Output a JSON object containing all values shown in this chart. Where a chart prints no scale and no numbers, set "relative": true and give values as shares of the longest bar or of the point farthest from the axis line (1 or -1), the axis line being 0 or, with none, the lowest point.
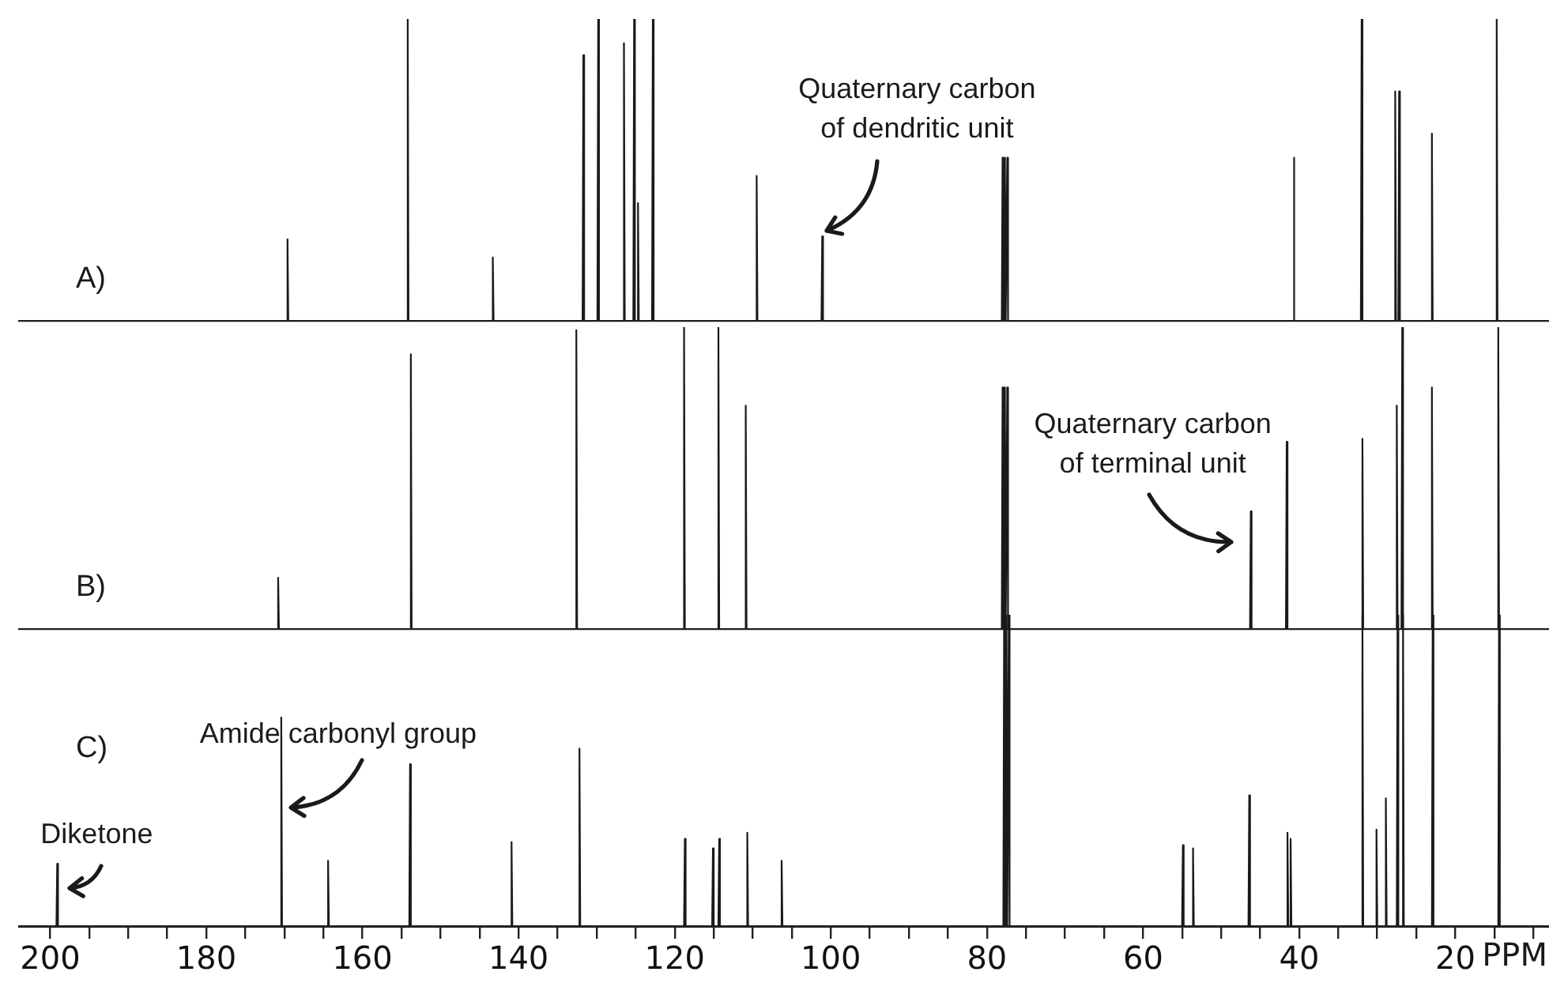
{
  "chart_data": [
    {
      "type": "line",
      "relative": true,
      "xlim": [
        204,
        8
      ],
      "tick_labels": false,
      "grid": false,
      "legend": false,
      "marker": "none",
      "line_style": "solid",
      "series": [
        {
          "name": "A)",
          "color": "#1a1a1a",
          "x": [
            204,
            169.7,
            169.6,
            169.5,
            154.3,
            154.2,
            154.1,
            143.4,
            143.3,
            143.2,
            131.8,
            131.7,
            131.6,
            129.9,
            129.8,
            129.7,
            126.6,
            126.5,
            126.4,
            125.3,
            125.2,
            125.1,
            124.8,
            124.7,
            124.6,
            122.9,
            122.8,
            122.7,
            109.6,
            109.5,
            109.4,
            101.2,
            101.1,
            101.0,
            78.1,
            78.0,
            77.9,
            77.8,
            77.7,
            77.6,
            77.5,
            77.4,
            77.3,
            40.8,
            40.7,
            40.6,
            32.1,
            32.0,
            31.9,
            27.8,
            27.7,
            27.6,
            27.3,
            27.2,
            27.1,
            23.1,
            23.0,
            22.9,
            14.8,
            14.7,
            14.6,
            8
          ],
          "values": [
            0,
            0,
            0.27,
            0,
            0,
            1,
            0,
            0,
            0.21,
            0,
            0,
            0.88,
            0,
            0,
            1,
            0,
            0,
            0.92,
            0,
            0,
            1,
            0,
            0,
            0.39,
            0,
            0,
            1,
            0,
            0,
            0.48,
            0,
            0,
            0.28,
            0,
            0,
            0.54,
            0,
            0,
            0.54,
            0,
            0,
            0.54,
            0,
            0,
            0.54,
            0,
            0,
            1,
            0,
            0,
            0.76,
            0,
            0,
            0.76,
            0,
            0,
            0.62,
            0,
            0,
            1,
            0,
            0
          ]
        }
      ],
      "annotations": [
        {
          "text": "Quaternary carbon\nof dendritic unit",
          "x": 101.1,
          "y": 0.28
        }
      ]
    },
    {
      "type": "line",
      "relative": true,
      "xlim": [
        204,
        8
      ],
      "tick_labels": false,
      "grid": false,
      "legend": false,
      "marker": "none",
      "line_style": "solid",
      "series": [
        {
          "name": "B)",
          "color": "#1a1a1a",
          "x": [
            204,
            170.9,
            170.8,
            170.7,
            153.9,
            153.8,
            153.7,
            132.7,
            132.6,
            132.5,
            118.9,
            118.8,
            118.7,
            114.5,
            114.4,
            114.3,
            111.0,
            110.9,
            110.8,
            78.1,
            78.0,
            77.9,
            77.8,
            77.7,
            77.6,
            77.5,
            77.4,
            77.3,
            46.3,
            46.2,
            46.1,
            41.7,
            41.6,
            41.5,
            32.0,
            31.9,
            31.8,
            27.6,
            27.5,
            27.4,
            26.9,
            26.8,
            26.7,
            23.1,
            23.0,
            22.9,
            14.6,
            14.5,
            14.4,
            8
          ],
          "values": [
            0,
            0,
            0.17,
            0,
            0,
            0.91,
            0,
            0,
            0.99,
            0,
            0,
            1,
            0,
            0,
            1,
            0,
            0,
            0.74,
            0,
            0,
            0.8,
            0,
            0,
            0.8,
            0,
            0,
            0.8,
            0,
            0,
            0.39,
            0,
            0,
            0.62,
            0,
            0,
            0.63,
            0,
            0,
            0.74,
            0,
            0,
            1,
            0,
            0,
            0.8,
            0,
            0,
            1,
            0,
            0
          ]
        }
      ],
      "annotations": [
        {
          "text": "Quaternary carbon\nof terminal unit",
          "x": 46.2,
          "y": 0.39
        }
      ]
    },
    {
      "type": "line",
      "relative": true,
      "xlabel": "PPM",
      "xlim": [
        204,
        8
      ],
      "tick_labels": "x",
      "grid": false,
      "legend": false,
      "marker": "none",
      "line_style": "solid",
      "xticks": [
        200,
        {
          "value": 195,
          "label": null
        },
        {
          "value": 190,
          "label": null
        },
        {
          "value": 185,
          "label": null
        },
        180,
        {
          "value": 175,
          "label": null
        },
        {
          "value": 170,
          "label": null
        },
        {
          "value": 165,
          "label": null
        },
        160,
        {
          "value": 155,
          "label": null
        },
        {
          "value": 150,
          "label": null
        },
        {
          "value": 145,
          "label": null
        },
        140,
        {
          "value": 135,
          "label": null
        },
        {
          "value": 130,
          "label": null
        },
        {
          "value": 125,
          "label": null
        },
        120,
        {
          "value": 115,
          "label": null
        },
        {
          "value": 110,
          "label": null
        },
        {
          "value": 105,
          "label": null
        },
        100,
        {
          "value": 95,
          "label": null
        },
        {
          "value": 90,
          "label": null
        },
        {
          "value": 85,
          "label": null
        },
        80,
        {
          "value": 75,
          "label": null
        },
        {
          "value": 70,
          "label": null
        },
        {
          "value": 65,
          "label": null
        },
        60,
        {
          "value": 55,
          "label": null
        },
        {
          "value": 50,
          "label": null
        },
        {
          "value": 45,
          "label": null
        },
        40,
        {
          "value": 35,
          "label": null
        },
        {
          "value": 30,
          "label": null
        },
        {
          "value": 25,
          "label": null
        },
        20,
        {
          "value": 15,
          "label": null
        },
        {
          "value": 10,
          "label": null
        }
      ],
      "series": [
        {
          "name": "C)",
          "color": "#1a1a1a",
          "x": [
            204,
            199.2,
            199.1,
            199.0,
            170.5,
            170.4,
            170.3,
            164.5,
            164.4,
            164.3,
            154.0,
            153.9,
            153.8,
            141.0,
            140.9,
            140.8,
            132.3,
            132.2,
            132.1,
            118.8,
            118.7,
            118.6,
            115.2,
            115.1,
            115.0,
            114.4,
            114.3,
            114.2,
            110.8,
            110.7,
            110.6,
            106.4,
            106.3,
            106.2,
            77.9,
            77.8,
            77.7,
            77.6,
            77.5,
            77.4,
            77.3,
            77.2,
            77.1,
            55.0,
            54.9,
            54.8,
            53.7,
            53.6,
            53.5,
            46.5,
            46.4,
            46.3,
            41.6,
            41.5,
            41.4,
            41.2,
            41.1,
            41.0,
            32.0,
            31.9,
            31.8,
            30.2,
            30.1,
            30.0,
            29.0,
            28.9,
            28.8,
            27.5,
            27.4,
            27.3,
            26.8,
            26.7,
            26.6,
            23.0,
            22.9,
            22.8,
            14.5,
            14.4,
            14.3,
            8
          ],
          "values": [
            0,
            0,
            0.2,
            0,
            0,
            0.67,
            0,
            0,
            0.21,
            0,
            0,
            0.52,
            0,
            0,
            0.27,
            0,
            0,
            0.57,
            0,
            0,
            0.28,
            0,
            0,
            0.25,
            0,
            0,
            0.28,
            0,
            0,
            0.3,
            0,
            0,
            0.21,
            0,
            0,
            1,
            0,
            0,
            1,
            0,
            0,
            1,
            0,
            0,
            0.26,
            0,
            0,
            0.25,
            0,
            0,
            0.42,
            0,
            0,
            0.3,
            0,
            0,
            0.28,
            0,
            0,
            1,
            0,
            0,
            0.31,
            0,
            0,
            0.41,
            0,
            0,
            1,
            0,
            0,
            1,
            0,
            0,
            1,
            0,
            0,
            1,
            0,
            0
          ]
        }
      ],
      "annotations": [
        {
          "text": "Amide carbonyl group",
          "x": 170.4,
          "y": 0.67
        },
        {
          "text": "Diketone",
          "x": 199.1,
          "y": 0.2
        }
      ]
    }
  ]
}
